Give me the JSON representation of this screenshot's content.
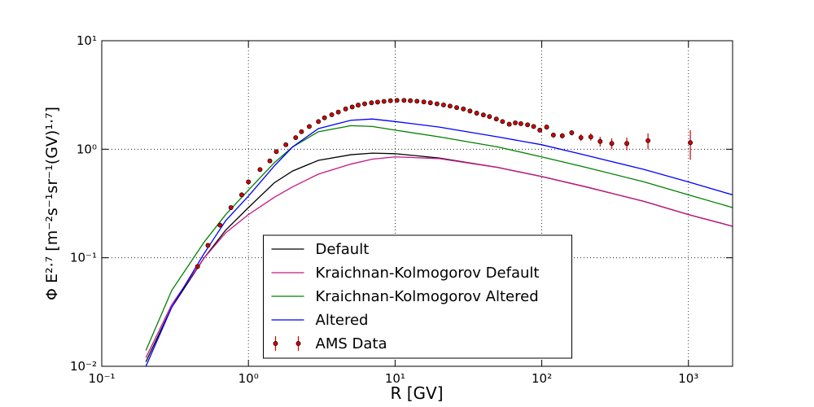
{
  "chart_data": {
    "type": "line",
    "x_label": "R [GV]",
    "y_label": "Φ E²·⁷ [m⁻²s⁻¹sr⁻¹(GV)¹·⁷]",
    "xscale": "log",
    "yscale": "log",
    "xlim": [
      0.1,
      2000
    ],
    "ylim": [
      0.01,
      10
    ],
    "xticks": [
      {
        "value": 0.1,
        "label": "10⁻¹"
      },
      {
        "value": 1,
        "label": "10⁰"
      },
      {
        "value": 10,
        "label": "10¹"
      },
      {
        "value": 100,
        "label": "10²"
      },
      {
        "value": 1000,
        "label": "10³"
      }
    ],
    "yticks": [
      {
        "value": 0.01,
        "label": "10⁻²"
      },
      {
        "value": 0.1,
        "label": "10⁻¹"
      },
      {
        "value": 1,
        "label": "10⁰"
      },
      {
        "value": 10,
        "label": "10¹"
      }
    ],
    "grid": true,
    "legend": "lower center",
    "x": [
      0.2,
      0.3,
      0.5,
      0.7,
      1,
      1.5,
      2,
      3,
      5,
      7,
      10,
      20,
      50,
      100,
      200,
      500,
      1000,
      2000
    ],
    "series": [
      {
        "name": "Default",
        "color": "#000000",
        "values": [
          0.011,
          0.035,
          0.1,
          0.18,
          0.29,
          0.49,
          0.63,
          0.79,
          0.89,
          0.92,
          0.91,
          0.83,
          0.68,
          0.56,
          0.45,
          0.33,
          0.25,
          0.195
        ]
      },
      {
        "name": "Kraichnan-Kolmogorov Default",
        "color": "#c71585",
        "values": [
          0.012,
          0.037,
          0.1,
          0.17,
          0.25,
          0.36,
          0.45,
          0.59,
          0.73,
          0.81,
          0.85,
          0.82,
          0.68,
          0.56,
          0.45,
          0.33,
          0.25,
          0.195
        ]
      },
      {
        "name": "Kraichnan-Kolmogorov Altered",
        "color": "#008000",
        "values": [
          0.014,
          0.05,
          0.14,
          0.25,
          0.42,
          0.75,
          1.05,
          1.45,
          1.65,
          1.62,
          1.5,
          1.3,
          1.05,
          0.85,
          0.68,
          0.5,
          0.38,
          0.29
        ]
      },
      {
        "name": "Altered",
        "color": "#0000ff",
        "values": [
          0.01,
          0.035,
          0.11,
          0.22,
          0.37,
          0.7,
          1.05,
          1.55,
          1.85,
          1.9,
          1.8,
          1.6,
          1.3,
          1.1,
          0.88,
          0.65,
          0.5,
          0.38
        ]
      },
      {
        "name": "AMS Data",
        "type": "errorbar",
        "color": "#d40000",
        "x": [
          0.45,
          0.53,
          0.64,
          0.76,
          0.9,
          1.0,
          1.2,
          1.4,
          1.55,
          1.8,
          2.1,
          2.3,
          2.6,
          3.0,
          3.3,
          3.7,
          4.1,
          4.6,
          5.1,
          5.6,
          6.2,
          6.9,
          7.6,
          8.4,
          9.3,
          10.3,
          11.5,
          12.7,
          14.1,
          15.7,
          17.4,
          19.3,
          21.4,
          23.7,
          26.3,
          29.2,
          32.4,
          36,
          40,
          44,
          49,
          54,
          60,
          66,
          72,
          80,
          88,
          97,
          108,
          120,
          138,
          160,
          185,
          216,
          250,
          300,
          380,
          530,
          1030
        ],
        "values": [
          0.083,
          0.13,
          0.2,
          0.29,
          0.38,
          0.5,
          0.65,
          0.78,
          0.95,
          1.1,
          1.28,
          1.45,
          1.62,
          1.8,
          1.95,
          2.08,
          2.2,
          2.35,
          2.45,
          2.55,
          2.62,
          2.68,
          2.72,
          2.76,
          2.8,
          2.82,
          2.82,
          2.8,
          2.77,
          2.73,
          2.68,
          2.62,
          2.56,
          2.5,
          2.42,
          2.35,
          2.25,
          2.15,
          2.07,
          2.0,
          1.9,
          1.8,
          1.7,
          1.75,
          1.72,
          1.68,
          1.62,
          1.5,
          1.6,
          1.35,
          1.33,
          1.42,
          1.28,
          1.3,
          1.18,
          1.13,
          1.13,
          1.2,
          1.15
        ],
        "errors": [
          0.004,
          0.005,
          0.006,
          0.008,
          0.01,
          0.012,
          0.014,
          0.016,
          0.018,
          0.02,
          0.022,
          0.025,
          0.027,
          0.03,
          0.03,
          0.032,
          0.034,
          0.035,
          0.036,
          0.037,
          0.038,
          0.039,
          0.04,
          0.04,
          0.04,
          0.041,
          0.041,
          0.041,
          0.041,
          0.041,
          0.041,
          0.041,
          0.041,
          0.041,
          0.041,
          0.041,
          0.041,
          0.041,
          0.041,
          0.042,
          0.042,
          0.043,
          0.045,
          0.047,
          0.05,
          0.055,
          0.06,
          0.065,
          0.07,
          0.07,
          0.075,
          0.08,
          0.09,
          0.1,
          0.12,
          0.13,
          0.15,
          0.2,
          0.35
        ]
      }
    ]
  }
}
